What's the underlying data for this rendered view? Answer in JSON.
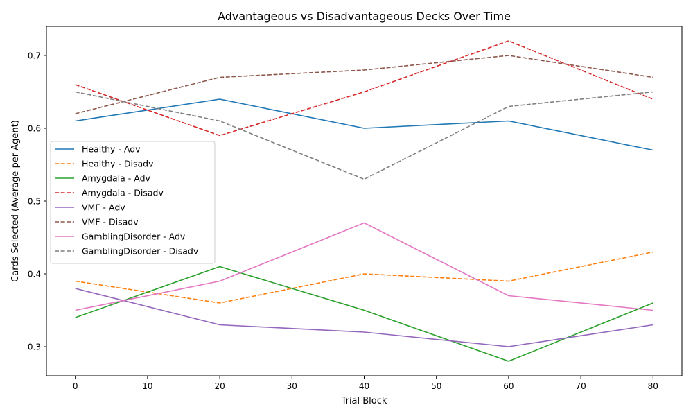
{
  "chart_data": {
    "type": "line",
    "title": "Advantageous vs Disadvantageous Decks Over Time",
    "xlabel": "Trial Block",
    "ylabel": "Cards Selected (Average per Agent)",
    "x": [
      0,
      20,
      40,
      60,
      80
    ],
    "xlim": [
      -4,
      84
    ],
    "ylim": [
      0.26,
      0.74
    ],
    "xticks": [
      0,
      10,
      20,
      30,
      40,
      50,
      60,
      70,
      80
    ],
    "yticks": [
      0.3,
      0.4,
      0.5,
      0.6,
      0.7
    ],
    "grid": false,
    "legend_position": "center-left",
    "series": [
      {
        "name": "Healthy - Adv",
        "values": [
          0.61,
          0.64,
          0.6,
          0.61,
          0.57
        ],
        "color": "#1f77b4",
        "dash": "solid"
      },
      {
        "name": "Healthy - Disadv",
        "values": [
          0.39,
          0.36,
          0.4,
          0.39,
          0.43
        ],
        "color": "#ff7f0e",
        "dash": "dashed"
      },
      {
        "name": "Amygdala - Adv",
        "values": [
          0.34,
          0.41,
          0.35,
          0.28,
          0.36
        ],
        "color": "#2ca02c",
        "dash": "solid"
      },
      {
        "name": "Amygdala - Disadv",
        "values": [
          0.66,
          0.59,
          0.65,
          0.72,
          0.64
        ],
        "color": "#d62728",
        "dash": "dashed"
      },
      {
        "name": "VMF - Adv",
        "values": [
          0.38,
          0.33,
          0.32,
          0.3,
          0.33
        ],
        "color": "#9467bd",
        "dash": "solid"
      },
      {
        "name": "VMF - Disadv",
        "values": [
          0.62,
          0.67,
          0.68,
          0.7,
          0.67
        ],
        "color": "#8c564b",
        "dash": "dashed"
      },
      {
        "name": "GamblingDisorder - Adv",
        "values": [
          0.35,
          0.39,
          0.47,
          0.37,
          0.35
        ],
        "color": "#e377c2",
        "dash": "solid"
      },
      {
        "name": "GamblingDisorder - Disadv",
        "values": [
          0.65,
          0.61,
          0.53,
          0.63,
          0.65
        ],
        "color": "#7f7f7f",
        "dash": "dashed"
      }
    ]
  }
}
